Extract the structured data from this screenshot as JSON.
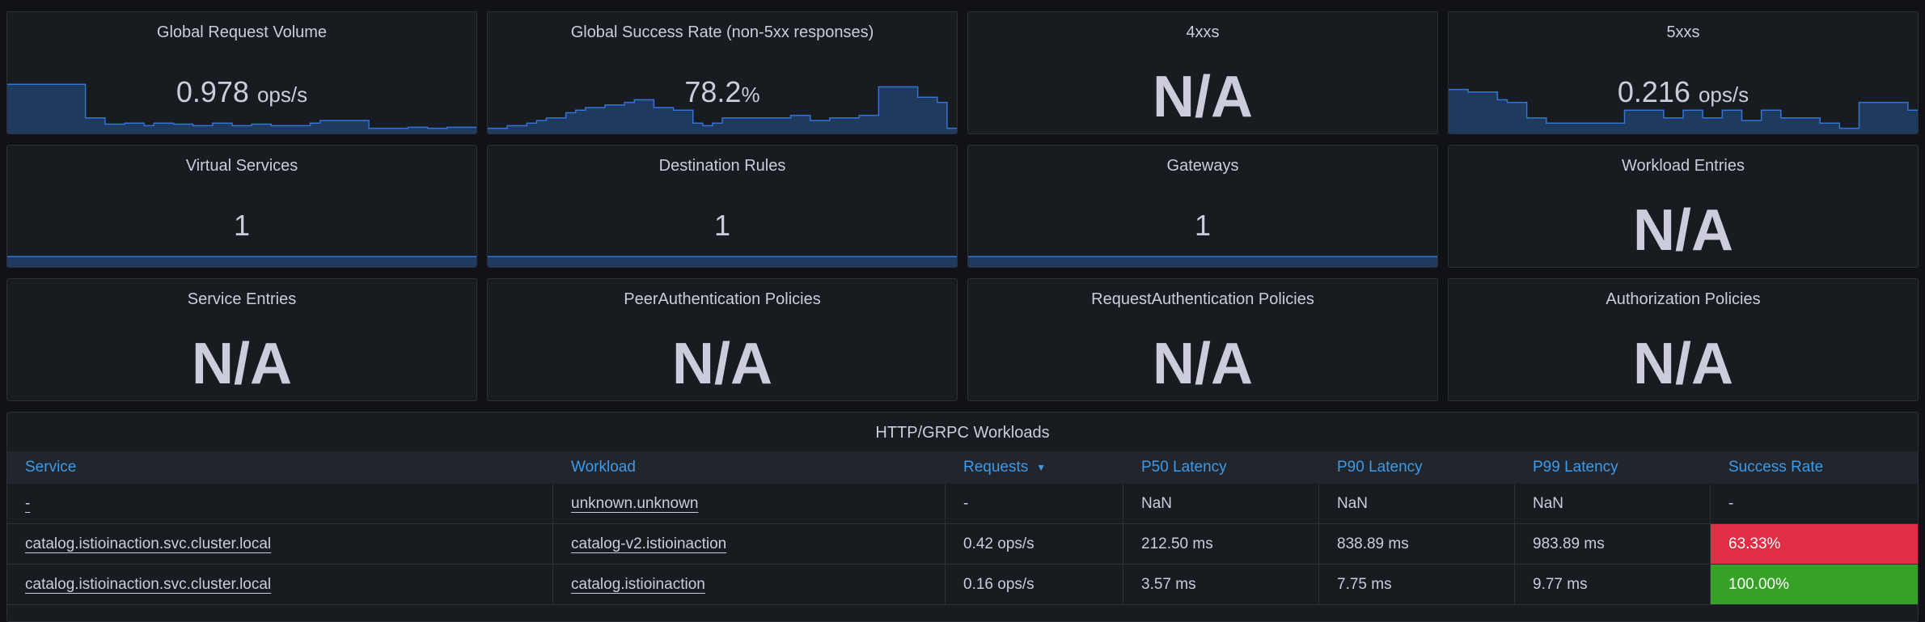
{
  "colors": {
    "panel_bg": "#181b1f",
    "spark_line": "#3274d9",
    "spark_fill": "#1f3a5c",
    "header_link": "#3d9ae8",
    "status_red": "#e02f44",
    "status_green": "#37a127"
  },
  "stats": {
    "global_request_volume": {
      "title": "Global Request Volume",
      "value": "0.978",
      "unit": "ops/s"
    },
    "global_success_rate": {
      "title": "Global Success Rate (non-5xx responses)",
      "value": "78.2",
      "unit": "%"
    },
    "x4xx": {
      "title": "4xxs",
      "value": "N/A"
    },
    "x5xx": {
      "title": "5xxs",
      "value": "0.216",
      "unit": "ops/s"
    },
    "virtual_services": {
      "title": "Virtual Services",
      "value": "1"
    },
    "destination_rules": {
      "title": "Destination Rules",
      "value": "1"
    },
    "gateways": {
      "title": "Gateways",
      "value": "1"
    },
    "workload_entries": {
      "title": "Workload Entries",
      "value": "N/A"
    },
    "service_entries": {
      "title": "Service Entries",
      "value": "N/A"
    },
    "peer_auth": {
      "title": "PeerAuthentication Policies",
      "value": "N/A"
    },
    "request_auth": {
      "title": "RequestAuthentication Policies",
      "value": "N/A"
    },
    "authz": {
      "title": "Authorization Policies",
      "value": "N/A"
    }
  },
  "sparklines": {
    "global_request_volume": [
      0.95,
      0.95,
      0.95,
      0.95,
      0.95,
      0.95,
      0.95,
      0.95,
      0.3,
      0.3,
      0.18,
      0.18,
      0.2,
      0.2,
      0.15,
      0.2,
      0.2,
      0.18,
      0.18,
      0.15,
      0.15,
      0.2,
      0.2,
      0.15,
      0.15,
      0.18,
      0.18,
      0.15,
      0.15,
      0.15,
      0.15,
      0.2,
      0.25,
      0.25,
      0.25,
      0.25,
      0.25,
      0.1,
      0.1,
      0.1,
      0.1,
      0.12,
      0.12,
      0.1,
      0.1,
      0.12,
      0.12,
      0.12
    ],
    "global_success_rate": [
      0.1,
      0.1,
      0.15,
      0.15,
      0.2,
      0.25,
      0.3,
      0.3,
      0.4,
      0.45,
      0.5,
      0.5,
      0.55,
      0.55,
      0.6,
      0.65,
      0.65,
      0.5,
      0.5,
      0.45,
      0.45,
      0.2,
      0.15,
      0.2,
      0.3,
      0.3,
      0.3,
      0.3,
      0.3,
      0.3,
      0.3,
      0.35,
      0.35,
      0.25,
      0.25,
      0.3,
      0.3,
      0.3,
      0.35,
      0.35,
      0.9,
      0.9,
      0.9,
      0.9,
      0.7,
      0.7,
      0.6,
      0.1
    ],
    "x5xx": [
      0.85,
      0.85,
      0.8,
      0.8,
      0.8,
      0.65,
      0.6,
      0.6,
      0.3,
      0.3,
      0.2,
      0.2,
      0.2,
      0.2,
      0.2,
      0.2,
      0.2,
      0.2,
      0.45,
      0.45,
      0.45,
      0.45,
      0.3,
      0.3,
      0.45,
      0.45,
      0.3,
      0.3,
      0.45,
      0.45,
      0.25,
      0.25,
      0.45,
      0.45,
      0.3,
      0.3,
      0.3,
      0.3,
      0.2,
      0.2,
      0.1,
      0.1,
      0.6,
      0.6,
      0.6,
      0.6,
      0.6,
      0.45
    ],
    "virtual_services": [
      0.2,
      0.2
    ],
    "destination_rules": [
      0.2,
      0.2
    ],
    "gateways": [
      0.2,
      0.2
    ]
  },
  "table": {
    "title": "HTTP/GRPC Workloads",
    "headers": {
      "service": "Service",
      "workload": "Workload",
      "requests": "Requests",
      "p50": "P50 Latency",
      "p90": "P90 Latency",
      "p99": "P99 Latency",
      "success": "Success Rate"
    },
    "sort_icon": "chevron-down-icon",
    "rows": [
      {
        "service": "-",
        "workload": "unknown.unknown",
        "requests": "-",
        "p50": "NaN",
        "p90": "NaN",
        "p99": "NaN",
        "success": "-",
        "status": "none"
      },
      {
        "service": "catalog.istioinaction.svc.cluster.local",
        "workload": "catalog-v2.istioinaction",
        "requests": "0.42 ops/s",
        "p50": "212.50 ms",
        "p90": "838.89 ms",
        "p99": "983.89 ms",
        "success": "63.33%",
        "status": "red"
      },
      {
        "service": "catalog.istioinaction.svc.cluster.local",
        "workload": "catalog.istioinaction",
        "requests": "0.16 ops/s",
        "p50": "3.57 ms",
        "p90": "7.75 ms",
        "p99": "9.77 ms",
        "success": "100.00%",
        "status": "green"
      }
    ]
  }
}
